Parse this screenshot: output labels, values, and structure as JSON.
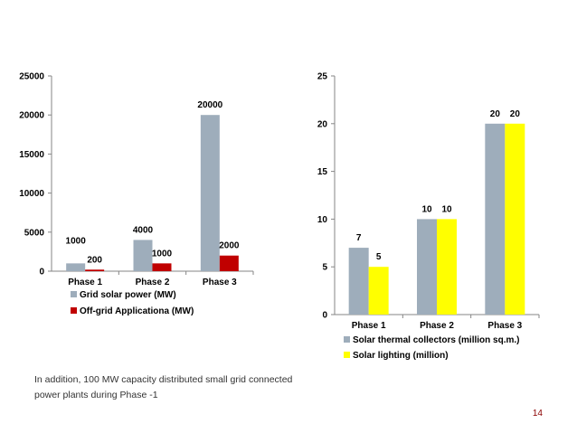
{
  "chart_data": [
    {
      "type": "bar",
      "categories": [
        "Phase 1",
        "Phase 2",
        "Phase 3"
      ],
      "series": [
        {
          "name": "Grid solar power (MW)",
          "values": [
            1000,
            4000,
            20000
          ],
          "color": "#9eadbb"
        },
        {
          "name": "Off-grid Applicationa (MW)",
          "values": [
            200,
            1000,
            2000
          ],
          "color": "#c00000"
        }
      ],
      "yticks": [
        "0",
        "5000",
        "10000",
        "15000",
        "20000",
        "25000"
      ],
      "ylim": [
        0,
        25000
      ],
      "grid": false,
      "legend": "bottom"
    },
    {
      "type": "bar",
      "categories": [
        "Phase 1",
        "Phase 2",
        "Phase 3"
      ],
      "series": [
        {
          "name": "Solar thermal collectors (million sq.m.)",
          "values": [
            7,
            10,
            20
          ],
          "color": "#9eadbb"
        },
        {
          "name": "Solar lighting (million)",
          "values": [
            5,
            10,
            20
          ],
          "color": "#ffff00"
        }
      ],
      "yticks": [
        "0",
        "5",
        "10",
        "15",
        "20",
        "25"
      ],
      "ylim": [
        0,
        25
      ],
      "grid": false,
      "legend": "bottom"
    }
  ],
  "note": "In addition, 100 MW capacity distributed small grid connected power plants during Phase -1",
  "page_number": "14"
}
